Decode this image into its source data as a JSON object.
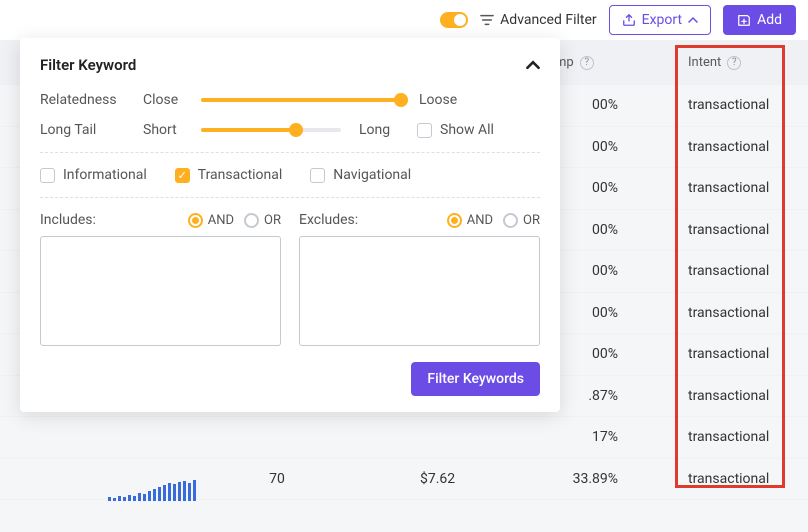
{
  "colors": {
    "accent_orange": "#ffb020",
    "accent_purple": "#6b4de6",
    "highlight_red": "#e03a2f"
  },
  "toolbar": {
    "toggle_on": true,
    "advanced_filter": "Advanced Filter",
    "export": "Export",
    "add": "Add"
  },
  "table": {
    "columns": {
      "comp": "mp",
      "intent": "Intent"
    },
    "rows": [
      {
        "comp": "00%",
        "intent": "transactional"
      },
      {
        "comp": "00%",
        "intent": "transactional"
      },
      {
        "comp": "00%",
        "intent": "transactional"
      },
      {
        "comp": "00%",
        "intent": "transactional"
      },
      {
        "comp": "00%",
        "intent": "transactional"
      },
      {
        "comp": "00%",
        "intent": "transactional"
      },
      {
        "comp": "00%",
        "intent": "transactional"
      },
      {
        "comp": ".87%",
        "intent": "transactional"
      },
      {
        "comp": "17%",
        "intent": "transactional"
      },
      {
        "comp": "33.89%",
        "intent": "transactional",
        "num": "70",
        "price": "$7.62",
        "spark": [
          4,
          3,
          5,
          4,
          6,
          5,
          8,
          7,
          10,
          12,
          14,
          16,
          18,
          17,
          19,
          20,
          18,
          21
        ]
      }
    ]
  },
  "panel": {
    "title": "Filter Keyword",
    "relatedness": {
      "label": "Relatedness",
      "left": "Close",
      "right": "Loose",
      "pct": 100
    },
    "longtail": {
      "label": "Long Tail",
      "left": "Short",
      "right": "Long",
      "pct": 68,
      "show_all": "Show All",
      "show_all_checked": false
    },
    "intents": {
      "informational": {
        "label": "Informational",
        "checked": false
      },
      "transactional": {
        "label": "Transactional",
        "checked": true
      },
      "navigational": {
        "label": "Navigational",
        "checked": false
      }
    },
    "includes": {
      "label": "Includes:",
      "mode": "AND",
      "and": "AND",
      "or": "OR",
      "value": ""
    },
    "excludes": {
      "label": "Excludes:",
      "mode": "AND",
      "and": "AND",
      "or": "OR",
      "value": ""
    },
    "submit": "Filter Keywords"
  }
}
